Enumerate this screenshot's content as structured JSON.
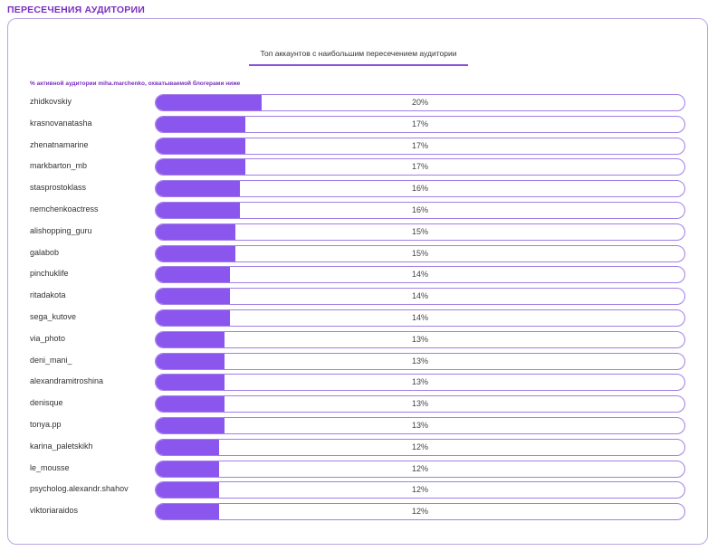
{
  "page": {
    "section_title": "ПЕРЕСЕЧЕНИЯ АУДИТОРИИ",
    "tab_title": "Топ аккаунтов с наибольшим пересечением аудитории",
    "subtitle": "% активной аудитории miha.marchenko, охватываемой блогерами ниже"
  },
  "colors": {
    "accent": "#8b56ee",
    "border": "#a27ee6",
    "title": "#7a2fc0"
  },
  "chart_data": {
    "type": "bar",
    "orientation": "horizontal",
    "title": "Топ аккаунтов с наибольшим пересечением аудитории",
    "xlim": [
      0,
      100
    ],
    "categories": [
      "zhidkovskiy",
      "krasnovanatasha",
      "zhenatnamarine",
      "markbarton_mb",
      "stasprostoklass",
      "nemchenkoactress",
      "alishopping_guru",
      "galabob",
      "pinchuklife",
      "ritadakota",
      "sega_kutove",
      "via_photo",
      "deni_mani_",
      "alexandramitroshina",
      "denisque",
      "tonya.pp",
      "karina_paletskikh",
      "le_mousse",
      "psycholog.alexandr.shahov",
      "viktoriaraidos"
    ],
    "values": [
      20,
      17,
      17,
      17,
      16,
      16,
      15,
      15,
      14,
      14,
      14,
      13,
      13,
      13,
      13,
      13,
      12,
      12,
      12,
      12
    ],
    "value_labels": [
      "20%",
      "17%",
      "17%",
      "17%",
      "16%",
      "16%",
      "15%",
      "15%",
      "14%",
      "14%",
      "14%",
      "13%",
      "13%",
      "13%",
      "13%",
      "13%",
      "12%",
      "12%",
      "12%",
      "12%"
    ]
  }
}
